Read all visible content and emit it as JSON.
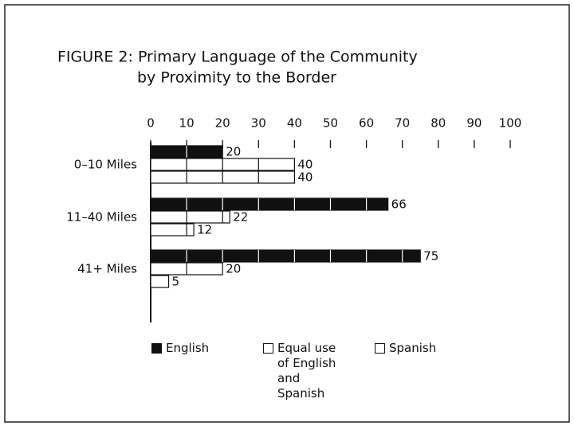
{
  "chart_data": {
    "type": "bar",
    "orientation": "horizontal",
    "title": [
      "FIGURE 2: Primary Language of the Community",
      "by Proximity to the Border"
    ],
    "categories": [
      "0–10 Miles",
      "11–40 Miles",
      "41+ Miles"
    ],
    "series": [
      {
        "name": "English",
        "color": "#111111",
        "values": [
          20,
          66,
          75
        ]
      },
      {
        "name": "Equal use of English and Spanish",
        "color": "#ffffff",
        "values": [
          40,
          22,
          20
        ]
      },
      {
        "name": "Spanish",
        "color": "#ffffff",
        "values": [
          40,
          12,
          5
        ]
      }
    ],
    "xlim": [
      0,
      100
    ],
    "xticks": [
      0,
      10,
      20,
      30,
      40,
      50,
      60,
      70,
      80,
      90,
      100
    ]
  }
}
